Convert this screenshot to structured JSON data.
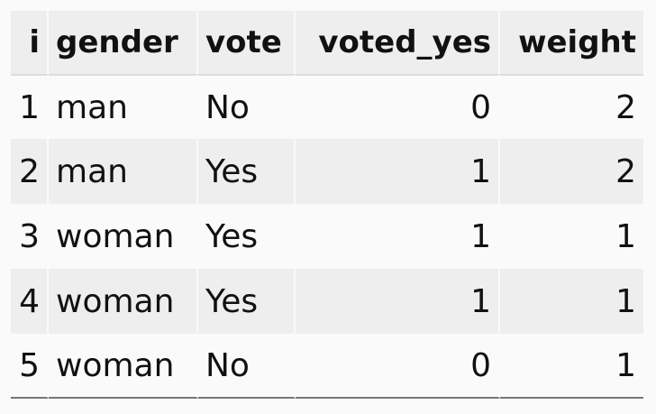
{
  "table": {
    "columns": [
      "i",
      "gender",
      "vote",
      "voted_yes",
      "weight"
    ],
    "rows": [
      {
        "i": "1",
        "gender": "man",
        "vote": "No",
        "voted_yes": "0",
        "weight": "2"
      },
      {
        "i": "2",
        "gender": "man",
        "vote": "Yes",
        "voted_yes": "1",
        "weight": "2"
      },
      {
        "i": "3",
        "gender": "woman",
        "vote": "Yes",
        "voted_yes": "1",
        "weight": "1"
      },
      {
        "i": "4",
        "gender": "woman",
        "vote": "Yes",
        "voted_yes": "1",
        "weight": "1"
      },
      {
        "i": "5",
        "gender": "woman",
        "vote": "No",
        "voted_yes": "0",
        "weight": "1"
      }
    ]
  }
}
